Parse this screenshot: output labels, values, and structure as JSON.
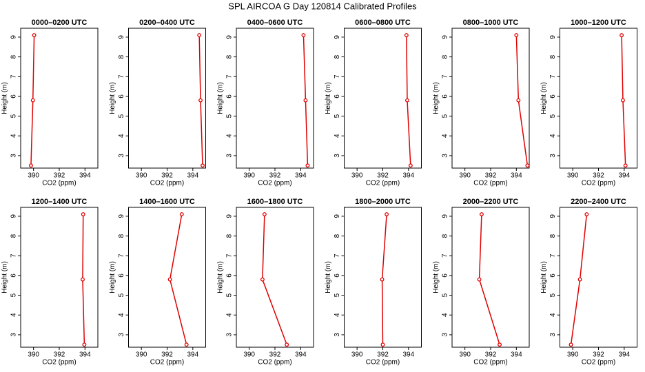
{
  "title": "SPL AIRCOA G  Day 120814  Calibrated Profiles",
  "chart_data": [
    {
      "type": "line",
      "title": "0000–0200 UTC",
      "xlabel": "CO2 (ppm)",
      "ylabel": "Height (m)",
      "color": "#e00000",
      "x": [
        389.8,
        389.95,
        390.05
      ],
      "values": [
        2.5,
        5.8,
        9.1
      ],
      "xlim": [
        389.0,
        395.0
      ],
      "ylim": [
        2.37,
        9.45
      ],
      "xticks": [
        390,
        392,
        394
      ],
      "yticks": [
        3,
        4,
        5,
        6,
        7,
        8,
        9
      ]
    },
    {
      "type": "line",
      "title": "0200–0400 UTC",
      "xlabel": "CO2 (ppm)",
      "ylabel": "Height (m)",
      "color": "#e00000",
      "x": [
        394.76,
        394.6,
        394.5
      ],
      "values": [
        2.5,
        5.8,
        9.1
      ],
      "xlim": [
        389.0,
        395.0
      ],
      "ylim": [
        2.37,
        9.45
      ],
      "xticks": [
        390,
        392,
        394
      ],
      "yticks": [
        3,
        4,
        5,
        6,
        7,
        8,
        9
      ]
    },
    {
      "type": "line",
      "title": "0400–0600 UTC",
      "xlabel": "CO2 (ppm)",
      "ylabel": "Height (m)",
      "color": "#e00000",
      "x": [
        394.54,
        394.38,
        394.22
      ],
      "values": [
        2.5,
        5.8,
        9.1
      ],
      "xlim": [
        389.0,
        395.0
      ],
      "ylim": [
        2.37,
        9.45
      ],
      "xticks": [
        390,
        392,
        394
      ],
      "yticks": [
        3,
        4,
        5,
        6,
        7,
        8,
        9
      ]
    },
    {
      "type": "line",
      "title": "0600–0800 UTC",
      "xlabel": "CO2 (ppm)",
      "ylabel": "Height (m)",
      "color": "#e00000",
      "x": [
        394.16,
        393.9,
        393.84
      ],
      "values": [
        2.5,
        5.8,
        9.1
      ],
      "xlim": [
        389.0,
        395.0
      ],
      "ylim": [
        2.37,
        9.45
      ],
      "xticks": [
        390,
        392,
        394
      ],
      "yticks": [
        3,
        4,
        5,
        6,
        7,
        8,
        9
      ]
    },
    {
      "type": "line",
      "title": "0800–1000 UTC",
      "xlabel": "CO2 (ppm)",
      "ylabel": "Height (m)",
      "color": "#e00000",
      "x": [
        394.86,
        394.16,
        394.0
      ],
      "values": [
        2.5,
        5.8,
        9.1
      ],
      "xlim": [
        389.0,
        395.0
      ],
      "ylim": [
        2.37,
        9.45
      ],
      "xticks": [
        390,
        392,
        394
      ],
      "yticks": [
        3,
        4,
        5,
        6,
        7,
        8,
        9
      ]
    },
    {
      "type": "line",
      "title": "1000–1200 UTC",
      "xlabel": "CO2 (ppm)",
      "ylabel": "Height (m)",
      "color": "#e00000",
      "x": [
        394.1,
        393.9,
        393.8
      ],
      "values": [
        2.5,
        5.8,
        9.1
      ],
      "xlim": [
        389.0,
        395.0
      ],
      "ylim": [
        2.37,
        9.45
      ],
      "xticks": [
        390,
        392,
        394
      ],
      "yticks": [
        3,
        4,
        5,
        6,
        7,
        8,
        9
      ]
    },
    {
      "type": "line",
      "title": "1200–1400 UTC",
      "xlabel": "CO2 (ppm)",
      "ylabel": "Height (m)",
      "color": "#e00000",
      "x": [
        393.95,
        393.82,
        393.86
      ],
      "values": [
        2.5,
        5.8,
        9.1
      ],
      "xlim": [
        389.0,
        395.0
      ],
      "ylim": [
        2.37,
        9.45
      ],
      "xticks": [
        390,
        392,
        394
      ],
      "yticks": [
        3,
        4,
        5,
        6,
        7,
        8,
        9
      ]
    },
    {
      "type": "line",
      "title": "1400–1600 UTC",
      "xlabel": "CO2 (ppm)",
      "ylabel": "Height (m)",
      "color": "#e00000",
      "x": [
        393.51,
        392.22,
        393.14
      ],
      "values": [
        2.5,
        5.8,
        9.1
      ],
      "xlim": [
        389.0,
        395.0
      ],
      "ylim": [
        2.37,
        9.45
      ],
      "xticks": [
        390,
        392,
        394
      ],
      "yticks": [
        3,
        4,
        5,
        6,
        7,
        8,
        9
      ]
    },
    {
      "type": "line",
      "title": "1600–1800 UTC",
      "xlabel": "CO2 (ppm)",
      "ylabel": "Height (m)",
      "color": "#e00000",
      "x": [
        392.92,
        391.03,
        391.19
      ],
      "values": [
        2.5,
        5.8,
        9.1
      ],
      "xlim": [
        389.0,
        395.0
      ],
      "ylim": [
        2.37,
        9.45
      ],
      "xticks": [
        390,
        392,
        394
      ],
      "yticks": [
        3,
        4,
        5,
        6,
        7,
        8,
        9
      ]
    },
    {
      "type": "line",
      "title": "1800–2000 UTC",
      "xlabel": "CO2 (ppm)",
      "ylabel": "Height (m)",
      "color": "#e00000",
      "x": [
        392.0,
        391.95,
        392.3
      ],
      "values": [
        2.5,
        5.8,
        9.1
      ],
      "xlim": [
        389.0,
        395.0
      ],
      "ylim": [
        2.37,
        9.45
      ],
      "xticks": [
        390,
        392,
        394
      ],
      "yticks": [
        3,
        4,
        5,
        6,
        7,
        8,
        9
      ]
    },
    {
      "type": "line",
      "title": "2000–2200 UTC",
      "xlabel": "CO2 (ppm)",
      "ylabel": "Height (m)",
      "color": "#e00000",
      "x": [
        392.7,
        391.12,
        391.3
      ],
      "values": [
        2.5,
        5.8,
        9.1
      ],
      "xlim": [
        389.0,
        395.0
      ],
      "ylim": [
        2.37,
        9.45
      ],
      "xticks": [
        390,
        392,
        394
      ],
      "yticks": [
        3,
        4,
        5,
        6,
        7,
        8,
        9
      ]
    },
    {
      "type": "line",
      "title": "2200–2400 UTC",
      "xlabel": "CO2 (ppm)",
      "ylabel": "Height (m)",
      "color": "#e00000",
      "x": [
        389.86,
        390.56,
        391.08
      ],
      "values": [
        2.5,
        5.8,
        9.1
      ],
      "xlim": [
        389.0,
        395.0
      ],
      "ylim": [
        2.37,
        9.45
      ],
      "xticks": [
        390,
        392,
        394
      ],
      "yticks": [
        3,
        4,
        5,
        6,
        7,
        8,
        9
      ]
    }
  ]
}
